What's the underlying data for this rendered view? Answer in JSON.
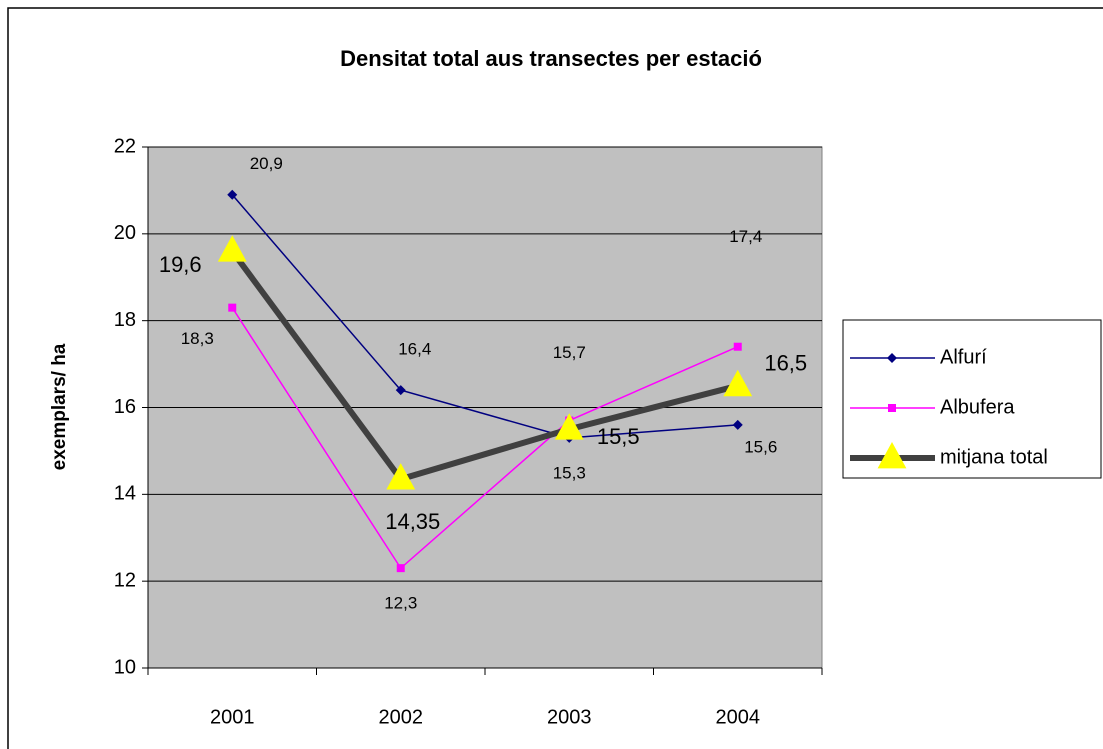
{
  "chart_data": {
    "type": "line",
    "title": "Densitat total aus transectes per estació",
    "y_label": "exemplars/ ha",
    "categories": [
      "2001",
      "2002",
      "2003",
      "2004"
    ],
    "series": [
      {
        "name": "Alfurí",
        "color": "#000080",
        "marker": "diamond",
        "values": [
          20.9,
          16.4,
          15.3,
          15.6
        ],
        "value_labels": [
          "20,9",
          "16,4",
          "15,3",
          "15,6"
        ]
      },
      {
        "name": "Albufera",
        "color": "#ff00ff",
        "marker": "square",
        "values": [
          18.3,
          12.3,
          15.7,
          17.4
        ],
        "value_labels": [
          "18,3",
          "12,3",
          "15,7",
          "17,4"
        ]
      },
      {
        "name": "mitjana total",
        "color": "#404040",
        "marker_color": "#ffff00",
        "marker": "triangle",
        "values": [
          19.6,
          14.35,
          15.5,
          16.5
        ],
        "value_labels": [
          "19,6",
          "14,35",
          "15,5",
          "16,5"
        ]
      }
    ],
    "ylim": [
      10,
      22
    ],
    "yticks": [
      10,
      12,
      14,
      16,
      18,
      20,
      22
    ],
    "grid": true,
    "legend": "right"
  }
}
